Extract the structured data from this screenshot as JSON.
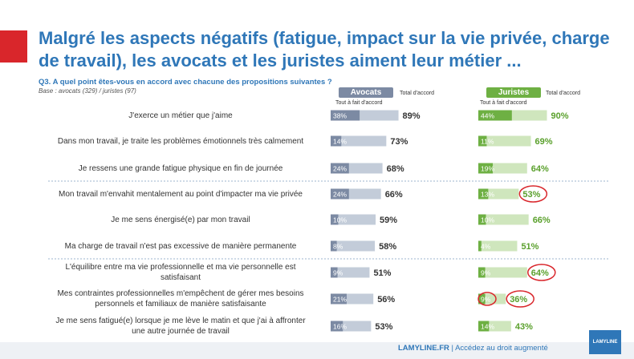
{
  "header": {
    "title": "Malgré les aspects négatifs (fatigue, impact sur la vie privée, charge de travail), les avocats et les juristes aiment leur métier ...",
    "question": "Q3. A quel point êtes-vous en accord avec chacune des propositions suivantes ?",
    "base": "Base : avocats (329) / juristes (97)"
  },
  "groups": {
    "avocats": "Avocats",
    "juristes": "Juristes",
    "sub_tout_a_fait": "Tout à fait d'accord",
    "sub_total": "Total d'accord"
  },
  "chart_data": {
    "type": "bar",
    "categories": [
      "J'exerce un métier que j'aime",
      "Dans mon travail, je traite les problèmes émotionnels très calmement",
      "Je ressens une grande fatigue physique en fin de journée",
      "Mon travail m'envahit mentalement au point d'impacter ma vie privée",
      "Je me sens énergisé(e) par mon travail",
      "Ma charge de travail n'est pas excessive de manière permanente",
      "L'équilibre entre ma vie professionnelle et ma vie personnelle est satisfaisant",
      "Mes contraintes professionnelles m'empêchent de gérer mes besoins personnels et familiaux de manière satisfaisante",
      "Je me sens fatigué(e) lorsque je me lève le matin et que j'ai à affronter une autre journée de travail"
    ],
    "series": [
      {
        "name": "Avocats - Tout à fait d'accord",
        "values": [
          38,
          14,
          24,
          24,
          10,
          8,
          9,
          21,
          16
        ]
      },
      {
        "name": "Avocats - Total d'accord",
        "values": [
          89,
          73,
          68,
          66,
          59,
          58,
          51,
          56,
          53
        ]
      },
      {
        "name": "Juristes - Tout à fait d'accord",
        "values": [
          44,
          11,
          19,
          13,
          10,
          4,
          9,
          9,
          14
        ]
      },
      {
        "name": "Juristes - Total d'accord",
        "values": [
          90,
          69,
          64,
          53,
          66,
          51,
          64,
          36,
          43
        ]
      }
    ],
    "circled_juristes": [
      3,
      6,
      7
    ],
    "circled_juristes_tout": [
      7
    ],
    "colors": {
      "avocats_dark": "#7c8aa3",
      "avocats_light": "#c3ccd9",
      "juristes_dark": "#6eb043",
      "juristes_light": "#cfe6bd",
      "avocats_text": "#333333",
      "juristes_text": "#5aa02c",
      "circle": "#d9262b"
    },
    "xlim": [
      0,
      100
    ]
  },
  "footer": {
    "brand": "LAMYLINE.FR",
    "tagline": "Accédez au droit augmenté",
    "logo": "LAMYLINE"
  }
}
